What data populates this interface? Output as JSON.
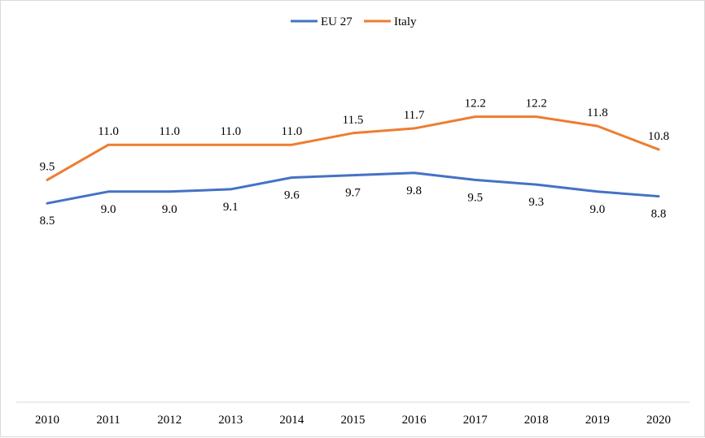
{
  "chart_data": {
    "type": "line",
    "title": "",
    "xlabel": "",
    "ylabel": "",
    "categories": [
      "2010",
      "2011",
      "2012",
      "2013",
      "2014",
      "2015",
      "2016",
      "2017",
      "2018",
      "2019",
      "2020"
    ],
    "series": [
      {
        "name": "EU 27",
        "color": "#4472C4",
        "values": [
          8.5,
          9.0,
          9.0,
          9.1,
          9.6,
          9.7,
          9.8,
          9.5,
          9.3,
          9.0,
          8.8
        ],
        "labels": [
          "8.5",
          "9.0",
          "9.0",
          "9.1",
          "9.6",
          "9.7",
          "9.8",
          "9.5",
          "9.3",
          "9.0",
          "8.8"
        ]
      },
      {
        "name": "Italy",
        "color": "#ED7D31",
        "values": [
          9.5,
          11.0,
          11.0,
          11.0,
          11.0,
          11.5,
          11.7,
          12.2,
          12.2,
          11.8,
          10.8
        ],
        "labels": [
          "9.5",
          "11.0",
          "11.0",
          "11.0",
          "11.0",
          "11.5",
          "11.7",
          "12.2",
          "12.2",
          "11.8",
          "10.8"
        ]
      }
    ],
    "ylim": [
      0,
      15
    ],
    "grid": false,
    "legend_position": "top-center",
    "data_labels": true
  }
}
